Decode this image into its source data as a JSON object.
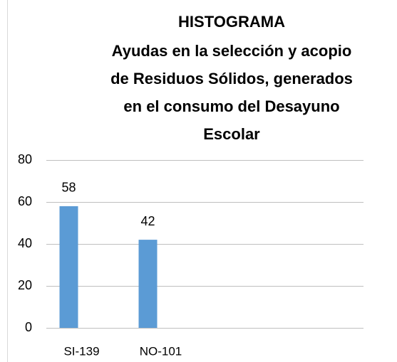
{
  "chart_data": {
    "type": "bar",
    "title": "HISTOGRAMA",
    "subtitle": [
      "Ayudas en la selección y acopio",
      "de Residuos Sólidos, generados",
      "en el consumo del Desayuno",
      "Escolar"
    ],
    "categories": [
      "SI-139",
      "NO-101"
    ],
    "values": [
      58,
      42
    ],
    "color": "#5b9bd5",
    "ylim": [
      0,
      80
    ],
    "yticks": [
      0,
      20,
      40,
      60,
      80
    ],
    "grid": true
  }
}
